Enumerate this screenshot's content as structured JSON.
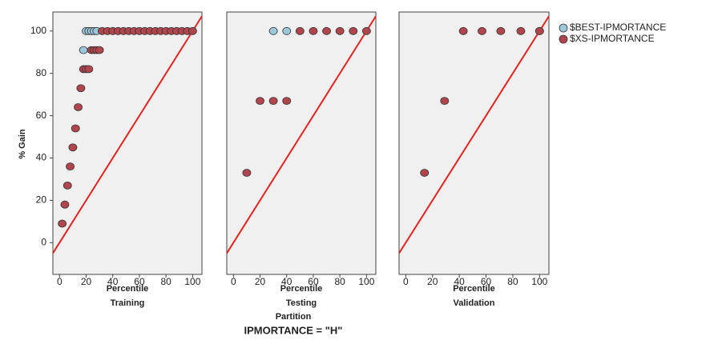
{
  "chart_data": [
    {
      "type": "scatter",
      "panel": "Training",
      "xlabel": "Percentile",
      "ylabel": "% Gain",
      "xlim": [
        -5,
        107
      ],
      "xticks": [
        0,
        20,
        40,
        60,
        80,
        100
      ],
      "ylim": [
        -15,
        109
      ],
      "yticks": [
        0,
        20,
        40,
        60,
        80,
        100
      ],
      "diagonal": true,
      "diagonal_color": "#e3231f",
      "series": [
        {
          "name": "$BEST-IPMORTANCE",
          "color": "#9cc8dc",
          "x": [
            18,
            20,
            22,
            24,
            26,
            28
          ],
          "values": [
            91,
            100,
            100,
            100,
            100,
            100
          ]
        },
        {
          "name": "$XS-IPMORTANCE",
          "color": "#b1454d",
          "x": [
            2,
            4,
            6,
            8,
            10,
            12,
            14,
            16,
            18,
            20,
            22,
            24,
            26,
            28,
            30,
            32,
            36,
            40,
            44,
            48,
            52,
            56,
            60,
            64,
            68,
            72,
            76,
            80,
            84,
            88,
            92,
            96,
            100
          ],
          "values": [
            9,
            18,
            27,
            36,
            45,
            54,
            64,
            73,
            82,
            82,
            82,
            91,
            91,
            91,
            91,
            100,
            100,
            100,
            100,
            100,
            100,
            100,
            100,
            100,
            100,
            100,
            100,
            100,
            100,
            100,
            100,
            100,
            100
          ]
        }
      ]
    },
    {
      "type": "scatter",
      "panel": "Testing",
      "xlabel": "Percentile",
      "xlim": [
        -5,
        107
      ],
      "xticks": [
        0,
        20,
        40,
        60,
        80,
        100
      ],
      "ylim": [
        -15,
        109
      ],
      "diagonal": true,
      "diagonal_color": "#e3231f",
      "series": [
        {
          "color": "#9cc8dc",
          "x": [
            30,
            40
          ],
          "values": [
            100,
            100
          ]
        },
        {
          "color": "#b1454d",
          "x": [
            10,
            20,
            30,
            40,
            50,
            60,
            70,
            80,
            90,
            100
          ],
          "values": [
            33,
            67,
            67,
            67,
            100,
            100,
            100,
            100,
            100,
            100
          ]
        }
      ]
    },
    {
      "type": "scatter",
      "panel": "Validation",
      "xlabel": "Percentile",
      "xlim": [
        -5,
        107
      ],
      "xticks": [
        0,
        20,
        40,
        60,
        80,
        100
      ],
      "ylim": [
        -15,
        109
      ],
      "diagonal": true,
      "diagonal_color": "#e3231f",
      "series": [
        {
          "color": "#9cc8dc",
          "x": [
            100
          ],
          "values": [
            100
          ]
        },
        {
          "color": "#b1454d",
          "x": [
            14,
            29,
            43,
            57,
            71,
            86,
            100
          ],
          "values": [
            33,
            67,
            100,
            100,
            100,
            100,
            100
          ]
        }
      ]
    }
  ],
  "facet_label": "Partition",
  "caption": "IPMORTANCE = \"H\""
}
